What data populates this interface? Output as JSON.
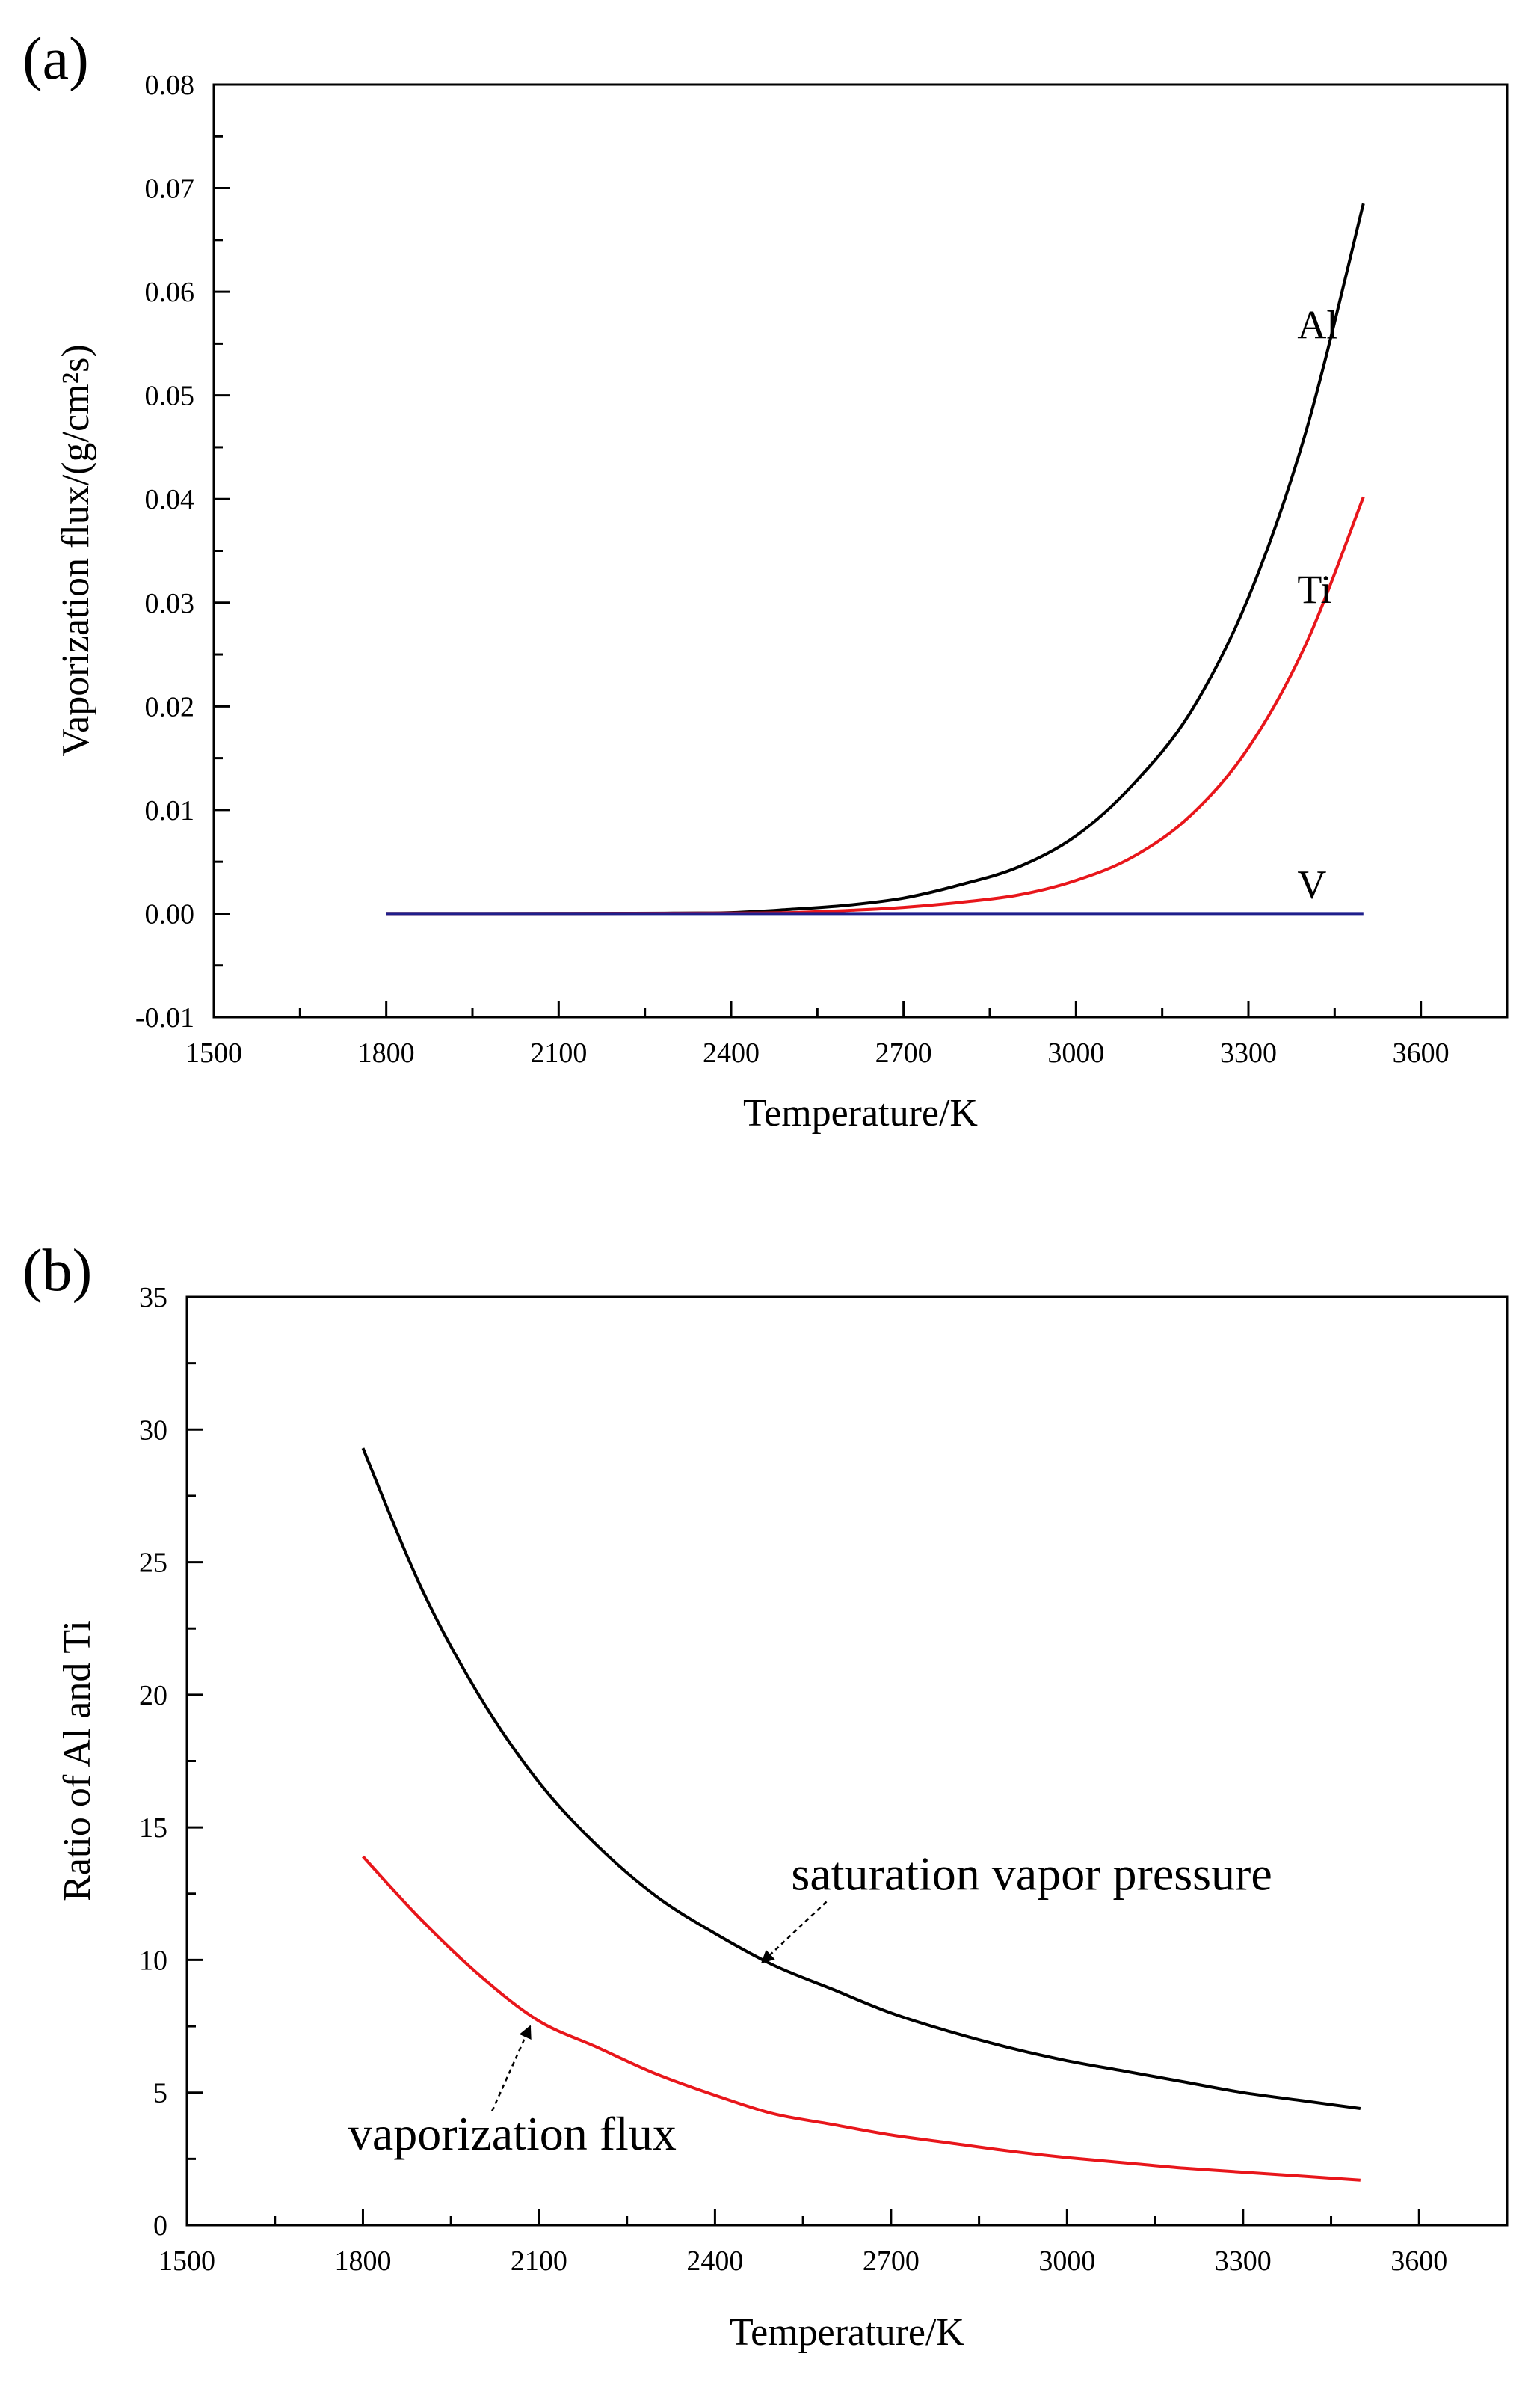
{
  "chart_data": [
    {
      "panel": "(a)",
      "type": "line",
      "xlabel": "Temperature/K",
      "ylabel": "Vaporization flux/(g/cm²s)",
      "xlim": [
        1500,
        3750
      ],
      "ylim": [
        -0.01,
        0.08
      ],
      "xticks": [
        1500,
        1800,
        2100,
        2400,
        2700,
        3000,
        3300,
        3600
      ],
      "yticks": [
        "-0.01",
        "0.00",
        "0.01",
        "0.02",
        "0.03",
        "0.04",
        "0.05",
        "0.06",
        "0.07",
        "0.08"
      ],
      "series": [
        {
          "name": "Al",
          "color": "#000000",
          "x": [
            1800,
            2100,
            2300,
            2400,
            2500,
            2600,
            2700,
            2800,
            2900,
            3000,
            3100,
            3200,
            3300,
            3400,
            3500
          ],
          "y": [
            0.0,
            1e-05,
            5e-05,
            0.0001,
            0.0004,
            0.0008,
            0.0015,
            0.0028,
            0.0045,
            0.0075,
            0.0125,
            0.0195,
            0.0305,
            0.0465,
            0.0685
          ]
        },
        {
          "name": "Ti",
          "color": "#e8161b",
          "x": [
            1800,
            2100,
            2400,
            2500,
            2600,
            2700,
            2800,
            2900,
            3000,
            3100,
            3200,
            3300,
            3400,
            3500
          ],
          "y": [
            0.0,
            1e-05,
            5e-05,
            0.0001,
            0.0003,
            0.0006,
            0.0011,
            0.0018,
            0.0032,
            0.0055,
            0.0095,
            0.016,
            0.026,
            0.0402
          ]
        },
        {
          "name": "V",
          "color": "#1f1f8c",
          "x": [
            1800,
            3500
          ],
          "y": [
            0.0,
            0.0
          ]
        }
      ],
      "labels": [
        {
          "text": "Al",
          "x": 3385,
          "y": 0.0555
        },
        {
          "text": "Ti",
          "x": 3385,
          "y": 0.03
        },
        {
          "text": "V",
          "x": 3385,
          "y": 0.0015
        }
      ]
    },
    {
      "panel": "(b)",
      "type": "line",
      "xlabel": "Temperature/K",
      "ylabel": "Ratio of Al and Ti",
      "xlim": [
        1500,
        3750
      ],
      "ylim": [
        0,
        35
      ],
      "xticks": [
        1500,
        1800,
        2100,
        2400,
        2700,
        3000,
        3300,
        3600
      ],
      "yticks": [
        "0",
        "5",
        "10",
        "15",
        "20",
        "25",
        "30",
        "35"
      ],
      "series": [
        {
          "name": "saturation vapor pressure",
          "color": "#000000",
          "x": [
            1800,
            1900,
            2000,
            2100,
            2200,
            2300,
            2400,
            2500,
            2600,
            2700,
            2800,
            2900,
            3000,
            3100,
            3200,
            3300,
            3400,
            3500
          ],
          "y": [
            29.3,
            24.0,
            19.9,
            16.7,
            14.3,
            12.4,
            11.0,
            9.8,
            8.9,
            8.0,
            7.3,
            6.7,
            6.2,
            5.8,
            5.4,
            5.0,
            4.7,
            4.4
          ]
        },
        {
          "name": "vaporization flux",
          "color": "#e8161b",
          "x": [
            1800,
            1900,
            2000,
            2100,
            2200,
            2300,
            2400,
            2500,
            2600,
            2700,
            2800,
            2900,
            3000,
            3100,
            3200,
            3300,
            3400,
            3500
          ],
          "y": [
            13.9,
            11.5,
            9.4,
            7.7,
            6.7,
            5.7,
            4.9,
            4.2,
            3.8,
            3.4,
            3.1,
            2.8,
            2.55,
            2.35,
            2.15,
            2.0,
            1.85,
            1.7
          ]
        }
      ],
      "annotations": [
        {
          "text": "saturation vapor pressure",
          "text_x": 2530,
          "text_y": 12.65,
          "arrow_from": [
            2590,
            12.2
          ],
          "arrow_to": [
            2480,
            9.9
          ]
        },
        {
          "text": "vaporization flux",
          "text_x": 1775,
          "text_y": 2.85,
          "arrow_from": [
            2020,
            4.3
          ],
          "arrow_to": [
            2085,
            7.5
          ]
        }
      ]
    }
  ]
}
